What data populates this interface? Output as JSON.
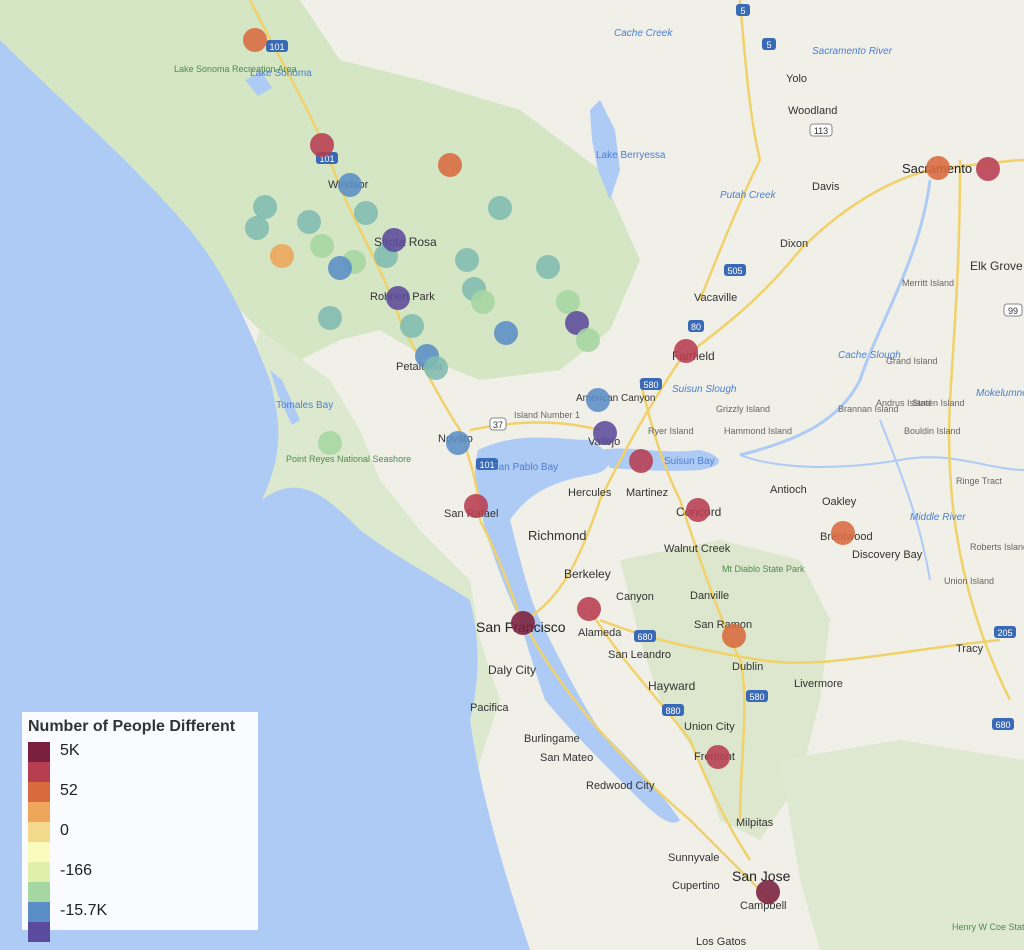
{
  "legend": {
    "title": "Number of People Different",
    "colors": [
      "#7a1f3d",
      "#b73e51",
      "#d86a3f",
      "#eda65a",
      "#f3d98b",
      "#fbfbc0",
      "#e0f0a8",
      "#a6d6a2",
      "#7fbcb0",
      "#5b8ec6",
      "#5b4b9c"
    ],
    "labels": [
      "5K",
      "52",
      "0",
      "-166",
      "-15.7K"
    ]
  },
  "map_labels": {
    "cities_major": [
      "San Francisco",
      "Sacramento",
      "San Jose",
      "Santa Rosa"
    ],
    "cities": [
      "Richmond",
      "Berkeley",
      "Oakley",
      "Concord",
      "Fairfield",
      "Vacaville",
      "Dixon",
      "Davis",
      "Woodland",
      "Yolo",
      "Petaluma",
      "Novato",
      "San Rafael",
      "Vallejo",
      "Hercules",
      "Martinez",
      "Antioch",
      "Brentwood",
      "Walnut Creek",
      "Canyon",
      "Danville",
      "San Ramon",
      "Dublin",
      "Livermore",
      "Hayward",
      "Union City",
      "Fremont",
      "Alameda",
      "San Leandro",
      "Daly City",
      "Pacifica",
      "Burlingame",
      "San Mateo",
      "Redwood City",
      "Milpitas",
      "Sunnyvale",
      "Cupertino",
      "Campbell",
      "Los Gatos",
      "Tracy",
      "Elk Grove",
      "Discovery Bay",
      "Windsor",
      "Rohnert Park",
      "American Canyon"
    ],
    "water": [
      "Lake Sonoma",
      "Lake Berryessa",
      "Tomales Bay",
      "San Pablo Bay",
      "Suisun Bay",
      "Sacramento River",
      "Putah Creek",
      "Cache Creek",
      "Cache Slough",
      "Suisun Slough",
      "Mokelumne River",
      "Middle River"
    ],
    "parks": [
      "Lake Sonoma Recreation Area",
      "Point Reyes National Seashore",
      "Mt Diablo State Park",
      "Henry W Coe State Park"
    ],
    "islands": [
      "Merritt Island",
      "Grand Island",
      "Andrus Island",
      "Staten Island",
      "Brannan Island",
      "Grizzly Island",
      "Hammond Island",
      "Bouldin Island",
      "Ryer Island",
      "Ringe Tract",
      "Roberts Island",
      "Union Island",
      "Island Number 1"
    ],
    "highways": [
      "5",
      "101",
      "80",
      "505",
      "37",
      "680",
      "580",
      "880",
      "99",
      "205",
      "113"
    ]
  }
}
